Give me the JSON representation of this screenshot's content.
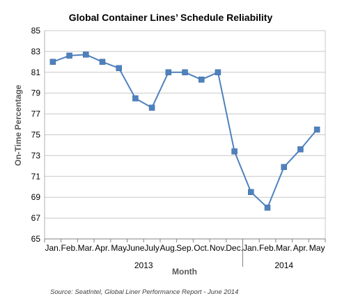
{
  "chart_data": {
    "type": "line",
    "title": "Global Container Lines’ Schedule Reliability",
    "xlabel": "Month",
    "ylabel": "On-Time Percentage",
    "ylim": [
      65,
      85
    ],
    "yticks": [
      65,
      67,
      69,
      71,
      73,
      75,
      77,
      79,
      81,
      83,
      85
    ],
    "grid": true,
    "categories": [
      "Jan.",
      "Feb.",
      "Mar.",
      "Apr.",
      "May",
      "June",
      "July",
      "Aug.",
      "Sep.",
      "Oct.",
      "Nov.",
      "Dec.",
      "Jan.",
      "Feb.",
      "Mar.",
      "Apr.",
      "May"
    ],
    "year_groups": [
      {
        "label": "2013",
        "start": 0,
        "end": 11
      },
      {
        "label": "2014",
        "start": 12,
        "end": 16
      }
    ],
    "series": [
      {
        "values": [
          82.0,
          82.6,
          82.7,
          82.0,
          81.4,
          78.5,
          77.6,
          81.0,
          81.0,
          80.3,
          81.0,
          73.4,
          69.5,
          68.0,
          71.9,
          73.6,
          75.5
        ],
        "color": "#4f81bd"
      }
    ],
    "source": "Source: SeatIntel, Global Liner Performance Report - June 2014"
  }
}
